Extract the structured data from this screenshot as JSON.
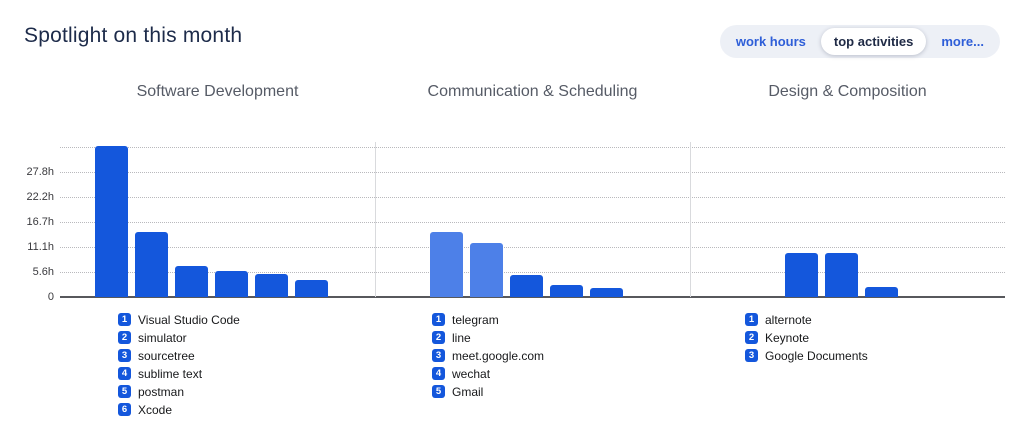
{
  "header": {
    "title": "Spotlight on this month",
    "tabs": [
      {
        "id": "work-hours",
        "label": "work hours",
        "active": false
      },
      {
        "id": "top-activities",
        "label": "top activities",
        "active": true
      },
      {
        "id": "more",
        "label": "more...",
        "active": false
      }
    ]
  },
  "chart_data": {
    "type": "bar",
    "unit": "hours",
    "grid": "dotted-horizontal",
    "ylim": [
      0,
      34.9
    ],
    "y_ticks": [
      {
        "label": "",
        "value": 33.3
      },
      {
        "label": "27.8h",
        "value": 27.8
      },
      {
        "label": "22.2h",
        "value": 22.2
      },
      {
        "label": "16.7h",
        "value": 16.7
      },
      {
        "label": "11.1h",
        "value": 11.1
      },
      {
        "label": "5.6h",
        "value": 5.6
      },
      {
        "label": "0",
        "value": 0
      }
    ],
    "colors": {
      "bar": "#1457dc",
      "bar_light": "#4d80e8",
      "legend_badge": "#1457dc"
    },
    "groups": [
      {
        "title": "Software Development",
        "items": [
          {
            "rank": 1,
            "label": "Visual Studio Code",
            "value": 33.5,
            "shade": "dark"
          },
          {
            "rank": 2,
            "label": "simulator",
            "value": 14.5,
            "shade": "dark"
          },
          {
            "rank": 3,
            "label": "sourcetree",
            "value": 7.0,
            "shade": "dark"
          },
          {
            "rank": 4,
            "label": "sublime text",
            "value": 5.8,
            "shade": "dark"
          },
          {
            "rank": 5,
            "label": "postman",
            "value": 5.2,
            "shade": "dark"
          },
          {
            "rank": 6,
            "label": "Xcode",
            "value": 3.8,
            "shade": "dark"
          }
        ]
      },
      {
        "title": "Communication & Scheduling",
        "items": [
          {
            "rank": 1,
            "label": "telegram",
            "value": 14.5,
            "shade": "light"
          },
          {
            "rank": 2,
            "label": "line",
            "value": 12.0,
            "shade": "light"
          },
          {
            "rank": 3,
            "label": "meet.google.com",
            "value": 5.0,
            "shade": "dark"
          },
          {
            "rank": 4,
            "label": "wechat",
            "value": 2.6,
            "shade": "dark"
          },
          {
            "rank": 5,
            "label": "Gmail",
            "value": 2.0,
            "shade": "dark"
          }
        ]
      },
      {
        "title": "Design & Composition",
        "items": [
          {
            "rank": 1,
            "label": "alternote",
            "value": 9.7,
            "shade": "dark"
          },
          {
            "rank": 2,
            "label": "Keynote",
            "value": 9.7,
            "shade": "dark"
          },
          {
            "rank": 3,
            "label": "Google Documents",
            "value": 2.2,
            "shade": "dark"
          }
        ]
      }
    ]
  }
}
